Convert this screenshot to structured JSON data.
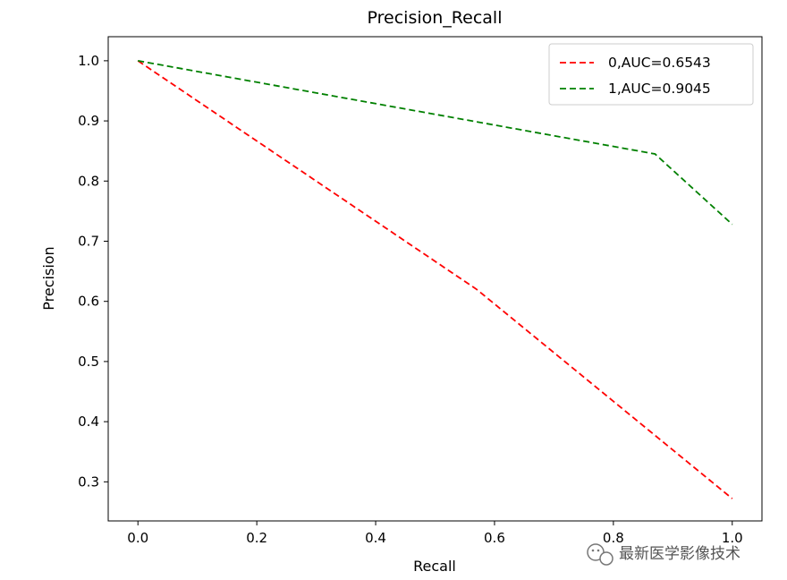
{
  "chart_data": {
    "type": "line",
    "title": "Precision_Recall",
    "xlabel": "Recall",
    "ylabel": "Precision",
    "xlim": [
      -0.05,
      1.05
    ],
    "ylim": [
      0.235,
      1.04
    ],
    "xticks": [
      0.0,
      0.2,
      0.4,
      0.6,
      0.8,
      1.0
    ],
    "xtick_labels": [
      "0.0",
      "0.2",
      "0.4",
      "0.6",
      "0.8",
      "1.0"
    ],
    "yticks": [
      0.3,
      0.4,
      0.5,
      0.6,
      0.7,
      0.8,
      0.9,
      1.0
    ],
    "ytick_labels": [
      "0.3",
      "0.4",
      "0.5",
      "0.6",
      "0.7",
      "0.8",
      "0.9",
      "1.0"
    ],
    "grid": false,
    "legend_position": "top-right",
    "series": [
      {
        "name": "0,AUC=0.6543",
        "color": "#ff0000",
        "linestyle": "dashed",
        "x": [
          0.0,
          0.57,
          1.0
        ],
        "y": [
          1.0,
          0.62,
          0.272
        ]
      },
      {
        "name": "1,AUC=0.9045",
        "color": "#008000",
        "linestyle": "dashed",
        "x": [
          0.0,
          0.87,
          1.0
        ],
        "y": [
          1.0,
          0.845,
          0.728
        ]
      }
    ]
  },
  "watermark": {
    "text": "最新医学影像技术",
    "icon": "wechat-icon"
  }
}
